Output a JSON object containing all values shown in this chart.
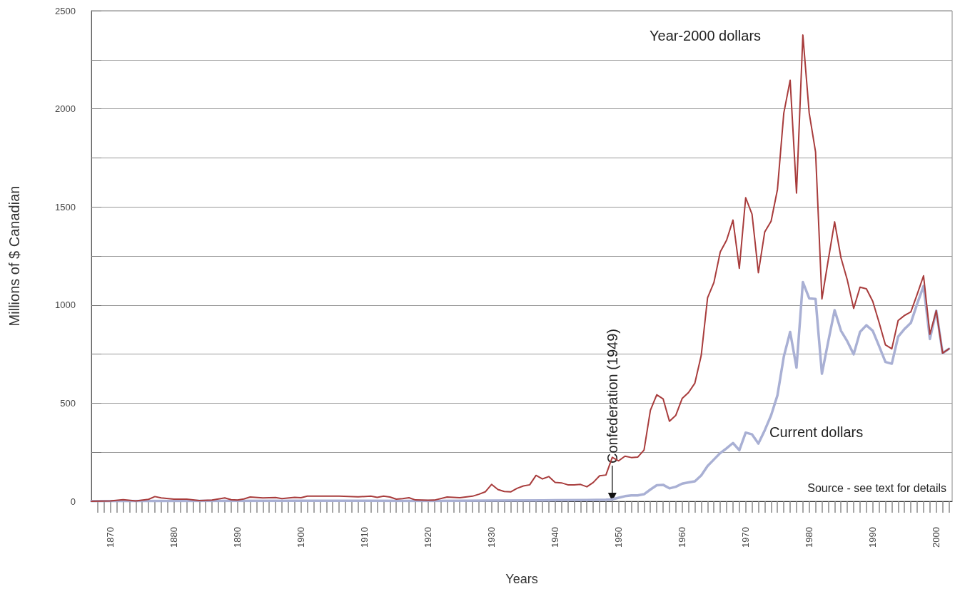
{
  "chart_data": {
    "type": "line",
    "xlabel": "Years",
    "ylabel": "Millions of $ Canadian",
    "xlim": [
      1867,
      2002.5
    ],
    "ylim": [
      0,
      2500
    ],
    "yticks": [
      0,
      {
        "value": 250,
        "label": null
      },
      500,
      {
        "value": 750,
        "label": null
      },
      1000,
      {
        "value": 1250,
        "label": null
      },
      1500,
      {
        "value": 1750,
        "label": null
      },
      2000,
      {
        "value": 2250,
        "label": null
      },
      2500
    ],
    "xticks": [
      {
        "value": 1868,
        "label": null
      },
      {
        "value": 1869,
        "label": null
      },
      1870,
      {
        "value": 1871,
        "label": null
      },
      {
        "value": 1872,
        "label": null
      },
      {
        "value": 1873,
        "label": null
      },
      {
        "value": 1874,
        "label": null
      },
      {
        "value": 1875,
        "label": null
      },
      {
        "value": 1876,
        "label": null
      },
      {
        "value": 1877,
        "label": null
      },
      {
        "value": 1878,
        "label": null
      },
      {
        "value": 1879,
        "label": null
      },
      1880,
      {
        "value": 1881,
        "label": null
      },
      {
        "value": 1882,
        "label": null
      },
      {
        "value": 1883,
        "label": null
      },
      {
        "value": 1884,
        "label": null
      },
      {
        "value": 1885,
        "label": null
      },
      {
        "value": 1886,
        "label": null
      },
      {
        "value": 1887,
        "label": null
      },
      {
        "value": 1888,
        "label": null
      },
      {
        "value": 1889,
        "label": null
      },
      1890,
      {
        "value": 1891,
        "label": null
      },
      {
        "value": 1892,
        "label": null
      },
      {
        "value": 1893,
        "label": null
      },
      {
        "value": 1894,
        "label": null
      },
      {
        "value": 1895,
        "label": null
      },
      {
        "value": 1896,
        "label": null
      },
      {
        "value": 1897,
        "label": null
      },
      {
        "value": 1898,
        "label": null
      },
      {
        "value": 1899,
        "label": null
      },
      1900,
      {
        "value": 1901,
        "label": null
      },
      {
        "value": 1902,
        "label": null
      },
      {
        "value": 1903,
        "label": null
      },
      {
        "value": 1904,
        "label": null
      },
      {
        "value": 1905,
        "label": null
      },
      {
        "value": 1906,
        "label": null
      },
      {
        "value": 1907,
        "label": null
      },
      {
        "value": 1908,
        "label": null
      },
      {
        "value": 1909,
        "label": null
      },
      1910,
      {
        "value": 1911,
        "label": null
      },
      {
        "value": 1912,
        "label": null
      },
      {
        "value": 1913,
        "label": null
      },
      {
        "value": 1914,
        "label": null
      },
      {
        "value": 1915,
        "label": null
      },
      {
        "value": 1916,
        "label": null
      },
      {
        "value": 1917,
        "label": null
      },
      {
        "value": 1918,
        "label": null
      },
      {
        "value": 1919,
        "label": null
      },
      1920,
      {
        "value": 1921,
        "label": null
      },
      {
        "value": 1922,
        "label": null
      },
      {
        "value": 1923,
        "label": null
      },
      {
        "value": 1924,
        "label": null
      },
      {
        "value": 1925,
        "label": null
      },
      {
        "value": 1926,
        "label": null
      },
      {
        "value": 1927,
        "label": null
      },
      {
        "value": 1928,
        "label": null
      },
      {
        "value": 1929,
        "label": null
      },
      1930,
      {
        "value": 1931,
        "label": null
      },
      {
        "value": 1932,
        "label": null
      },
      {
        "value": 1933,
        "label": null
      },
      {
        "value": 1934,
        "label": null
      },
      {
        "value": 1935,
        "label": null
      },
      {
        "value": 1936,
        "label": null
      },
      {
        "value": 1937,
        "label": null
      },
      {
        "value": 1938,
        "label": null
      },
      {
        "value": 1939,
        "label": null
      },
      1940,
      {
        "value": 1941,
        "label": null
      },
      {
        "value": 1942,
        "label": null
      },
      {
        "value": 1943,
        "label": null
      },
      {
        "value": 1944,
        "label": null
      },
      {
        "value": 1945,
        "label": null
      },
      {
        "value": 1946,
        "label": null
      },
      {
        "value": 1947,
        "label": null
      },
      {
        "value": 1948,
        "label": null
      },
      {
        "value": 1949,
        "label": null
      },
      1950,
      {
        "value": 1951,
        "label": null
      },
      {
        "value": 1952,
        "label": null
      },
      {
        "value": 1953,
        "label": null
      },
      {
        "value": 1954,
        "label": null
      },
      {
        "value": 1955,
        "label": null
      },
      {
        "value": 1956,
        "label": null
      },
      {
        "value": 1957,
        "label": null
      },
      {
        "value": 1958,
        "label": null
      },
      {
        "value": 1959,
        "label": null
      },
      1960,
      {
        "value": 1961,
        "label": null
      },
      {
        "value": 1962,
        "label": null
      },
      {
        "value": 1963,
        "label": null
      },
      {
        "value": 1964,
        "label": null
      },
      {
        "value": 1965,
        "label": null
      },
      {
        "value": 1966,
        "label": null
      },
      {
        "value": 1967,
        "label": null
      },
      {
        "value": 1968,
        "label": null
      },
      {
        "value": 1969,
        "label": null
      },
      1970,
      {
        "value": 1971,
        "label": null
      },
      {
        "value": 1972,
        "label": null
      },
      {
        "value": 1973,
        "label": null
      },
      {
        "value": 1974,
        "label": null
      },
      {
        "value": 1975,
        "label": null
      },
      {
        "value": 1976,
        "label": null
      },
      {
        "value": 1977,
        "label": null
      },
      {
        "value": 1978,
        "label": null
      },
      {
        "value": 1979,
        "label": null
      },
      1980,
      {
        "value": 1981,
        "label": null
      },
      {
        "value": 1982,
        "label": null
      },
      {
        "value": 1983,
        "label": null
      },
      {
        "value": 1984,
        "label": null
      },
      {
        "value": 1985,
        "label": null
      },
      {
        "value": 1986,
        "label": null
      },
      {
        "value": 1987,
        "label": null
      },
      {
        "value": 1988,
        "label": null
      },
      {
        "value": 1989,
        "label": null
      },
      1990,
      {
        "value": 1991,
        "label": null
      },
      {
        "value": 1992,
        "label": null
      },
      {
        "value": 1993,
        "label": null
      },
      {
        "value": 1994,
        "label": null
      },
      {
        "value": 1995,
        "label": null
      },
      {
        "value": 1996,
        "label": null
      },
      {
        "value": 1997,
        "label": null
      },
      {
        "value": 1998,
        "label": null
      },
      {
        "value": 1999,
        "label": null
      },
      2000,
      {
        "value": 2001,
        "label": null
      },
      {
        "value": 2002,
        "label": null
      }
    ],
    "grid": "y",
    "legend": false,
    "marker": "none",
    "line_style": "solid",
    "series": [
      {
        "name": "Year-2000 dollars",
        "color": "#a83c3c",
        "x": [
          1867,
          1870,
          1872,
          1874,
          1876,
          1877,
          1878,
          1880,
          1882,
          1884,
          1886,
          1888,
          1889,
          1890,
          1891,
          1892,
          1894,
          1896,
          1897,
          1899,
          1900,
          1901,
          1906,
          1909,
          1911,
          1912,
          1913,
          1914,
          1915,
          1916,
          1917,
          1918,
          1920,
          1921,
          1923,
          1925,
          1927,
          1928,
          1929,
          1930,
          1931,
          1932,
          1933,
          1934,
          1935,
          1936,
          1937,
          1938,
          1939,
          1940,
          1941,
          1942,
          1943,
          1944,
          1945,
          1946,
          1947,
          1948,
          1949,
          1950,
          1951,
          1952,
          1953,
          1954,
          1955,
          1956,
          1957,
          1958,
          1959,
          1960,
          1961,
          1962,
          1963,
          1964,
          1965,
          1966,
          1967,
          1968,
          1969,
          1970,
          1971,
          1972,
          1973,
          1974,
          1975,
          1976,
          1977,
          1978,
          1979,
          1980,
          1981,
          1982,
          1983,
          1984,
          1985,
          1986,
          1987,
          1988,
          1989,
          1990,
          1991,
          1992,
          1993,
          1994,
          1995,
          1996,
          1997,
          1998,
          1999,
          2000,
          2001,
          2002
        ],
        "values": [
          0,
          2,
          8,
          2,
          10,
          24,
          17,
          11,
          11,
          4,
          6,
          17,
          8,
          6,
          12,
          22,
          17,
          19,
          14,
          20,
          18,
          26,
          26,
          23,
          26,
          20,
          26,
          22,
          11,
          14,
          18,
          7,
          5,
          6,
          22,
          18,
          26,
          36,
          48,
          86,
          60,
          50,
          48,
          66,
          78,
          84,
          132,
          114,
          126,
          96,
          94,
          84,
          84,
          86,
          74,
          96,
          130,
          134,
          224,
          206,
          230,
          223,
          225,
          261,
          464,
          543,
          522,
          408,
          438,
          524,
          554,
          602,
          743,
          1037,
          1115,
          1271,
          1331,
          1433,
          1187,
          1547,
          1463,
          1165,
          1373,
          1427,
          1589,
          1978,
          2146,
          1571,
          2376,
          1978,
          1780,
          1031,
          1230,
          1424,
          1241,
          1127,
          983,
          1091,
          1083,
          1019,
          911,
          797,
          777,
          921,
          947,
          965,
          1055,
          1149,
          851,
          971,
          755,
          777
        ]
      },
      {
        "name": "Current dollars",
        "color": "#a9b0d4",
        "x": [
          1867,
          1880,
          1900,
          1920,
          1930,
          1940,
          1945,
          1948,
          1949,
          1950,
          1951,
          1952,
          1953,
          1954,
          1955,
          1956,
          1957,
          1958,
          1959,
          1960,
          1961,
          1962,
          1963,
          1964,
          1965,
          1966,
          1967,
          1968,
          1969,
          1970,
          1971,
          1972,
          1973,
          1974,
          1975,
          1976,
          1977,
          1978,
          1979,
          1980,
          1981,
          1982,
          1983,
          1984,
          1985,
          1986,
          1987,
          1988,
          1989,
          1990,
          1991,
          1992,
          1993,
          1994,
          1995,
          1996,
          1997,
          1998,
          1999,
          2000,
          2001,
          2002
        ],
        "values": [
          1,
          2,
          3,
          2,
          4,
          5,
          6,
          8,
          10,
          18,
          26,
          30,
          30,
          36,
          60,
          82,
          84,
          66,
          74,
          90,
          96,
          102,
          132,
          180,
          213,
          246,
          270,
          297,
          260,
          350,
          341,
          294,
          362,
          438,
          540,
          737,
          863,
          681,
          1117,
          1034,
          1031,
          650,
          815,
          974,
          869,
          815,
          749,
          863,
          897,
          869,
          791,
          710,
          701,
          839,
          878,
          909,
          1007,
          1097,
          827,
          971,
          755,
          777
        ]
      }
    ],
    "annotations": [
      {
        "text": "Confederation (1949)",
        "x": 1949,
        "y": 0
      },
      "Source - see text for details"
    ]
  }
}
